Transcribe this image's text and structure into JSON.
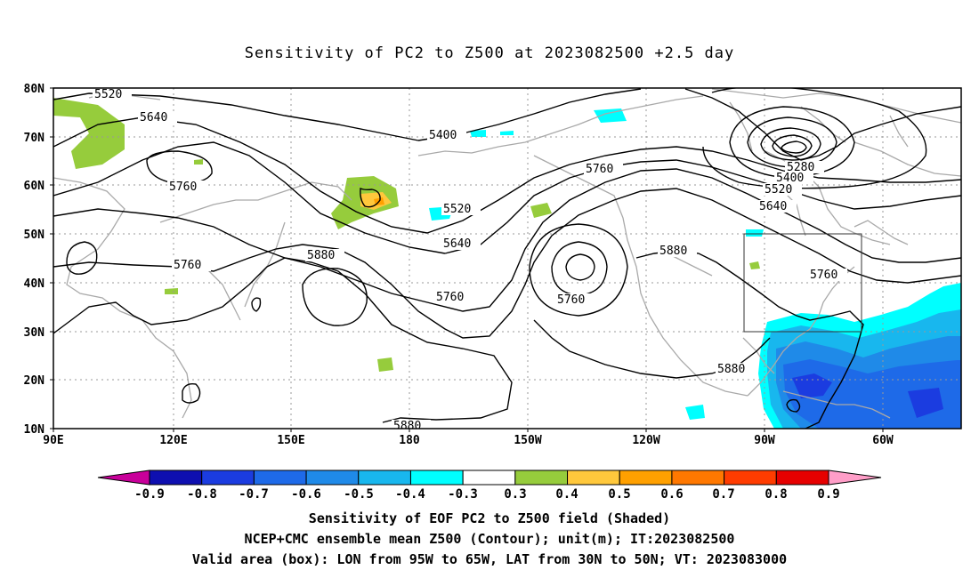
{
  "title": "Sensitivity of PC2 to Z500 at 2023082500 +2.5 day",
  "lat_labels": [
    "80N",
    "70N",
    "60N",
    "50N",
    "40N",
    "30N",
    "20N",
    "10N"
  ],
  "lon_labels": [
    "90E",
    "120E",
    "150E",
    "180",
    "150W",
    "120W",
    "90W",
    "60W"
  ],
  "contour_labels": {
    "c5520_left": "5520",
    "c5640_left": "5640",
    "c5760_left": "5760",
    "c5760_mid": "5760",
    "c5880_left": "5880",
    "c5400": "5400",
    "c5520_mid": "5520",
    "c5640_mid": "5640",
    "c5760_trough": "5760",
    "c5760_right": "5760",
    "c5880_right": "5880",
    "c5280": "5280",
    "c5400_right": "5400",
    "c5520_right": "5520",
    "c5640_right": "5640",
    "c5760_east": "5760",
    "c5760_low": "5760",
    "c5880_south": "5880",
    "c5880_bottom": "5880"
  },
  "colorbar": {
    "labels": [
      "-0.9",
      "-0.8",
      "-0.7",
      "-0.6",
      "-0.5",
      "-0.4",
      "-0.3",
      "0.3",
      "0.4",
      "0.5",
      "0.6",
      "0.7",
      "0.8",
      "0.9"
    ],
    "colors": [
      "#c8009a",
      "#0e0fb0",
      "#1b3ce0",
      "#1e6ae8",
      "#1f8ae8",
      "#18b7ee",
      "#00ffff",
      "#ffffff",
      "#96cc3c",
      "#ffc83c",
      "#ffa000",
      "#ff7800",
      "#ff3c00",
      "#e60000",
      "#ff9ec8"
    ]
  },
  "footer": {
    "line1": "Sensitivity of EOF PC2 to Z500 field (Shaded)",
    "line2": "NCEP+CMC ensemble mean Z500 (Contour); unit(m); IT:2023082500",
    "line3": "Valid area (box): LON from 95W to 65W, LAT from 30N to 50N; VT: 2023083000"
  }
}
